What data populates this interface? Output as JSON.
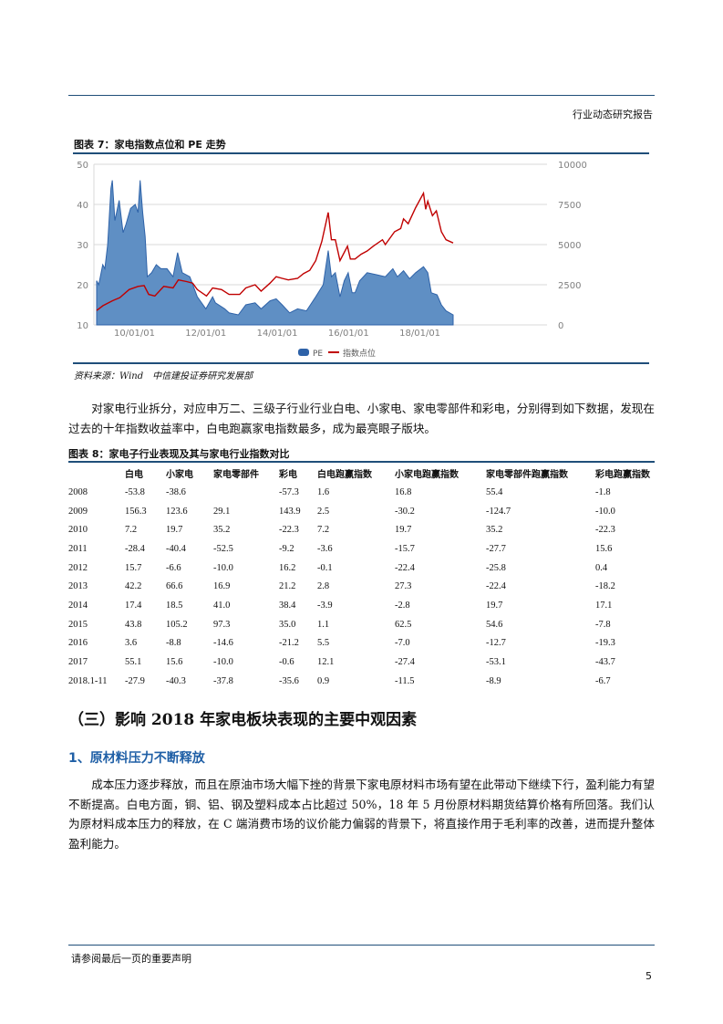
{
  "header": {
    "report_type": "行业动态研究报告"
  },
  "figure7": {
    "title": "图表 7：家电指数点位和 PE 走势",
    "source": "资料来源：Wind　中信建投证券研究发展部"
  },
  "chart_data": {
    "type": "area+line",
    "title": "家电指数点位和 PE 走势",
    "x_ticks": [
      {
        "label": "10/01/01",
        "year": 2010
      },
      {
        "label": "12/01/01",
        "year": 2012
      },
      {
        "label": "14/01/01",
        "year": 2014
      },
      {
        "label": "16/01/01",
        "year": 2016
      },
      {
        "label": "18/01/01",
        "year": 2018
      }
    ],
    "xlim": [
      2008.94,
      2018.93
    ],
    "y_left": {
      "ticks": [
        10,
        20,
        30,
        40,
        50
      ],
      "ylim": [
        10,
        50
      ]
    },
    "y_right": {
      "ticks": [
        0,
        2500,
        5000,
        7500,
        10000
      ],
      "ylim": [
        0,
        10000
      ]
    },
    "grid": true,
    "legend_position": "bottom",
    "series": [
      {
        "name": "PE",
        "type": "area",
        "axis": "left",
        "color": "#4472c4",
        "points": [
          [
            2008.94,
            21
          ],
          [
            2009.0,
            20
          ],
          [
            2009.11,
            25
          ],
          [
            2009.17,
            24
          ],
          [
            2009.25,
            30
          ],
          [
            2009.34,
            44
          ],
          [
            2009.38,
            46
          ],
          [
            2009.45,
            36
          ],
          [
            2009.57,
            41
          ],
          [
            2009.68,
            33
          ],
          [
            2009.76,
            35
          ],
          [
            2009.89,
            39
          ],
          [
            2010.02,
            40
          ],
          [
            2010.1,
            38
          ],
          [
            2010.16,
            46
          ],
          [
            2010.23,
            38
          ],
          [
            2010.3,
            32
          ],
          [
            2010.36,
            22
          ],
          [
            2010.48,
            23
          ],
          [
            2010.61,
            25
          ],
          [
            2010.74,
            24
          ],
          [
            2010.91,
            24
          ],
          [
            2011.08,
            22
          ],
          [
            2011.21,
            28
          ],
          [
            2011.34,
            23
          ],
          [
            2011.55,
            22
          ],
          [
            2011.76,
            17
          ],
          [
            2012.0,
            14
          ],
          [
            2012.19,
            17
          ],
          [
            2012.27,
            15.5
          ],
          [
            2012.53,
            14
          ],
          [
            2012.65,
            13
          ],
          [
            2012.91,
            12.5
          ],
          [
            2013.12,
            15
          ],
          [
            2013.38,
            15.5
          ],
          [
            2013.55,
            14
          ],
          [
            2013.8,
            16
          ],
          [
            2013.97,
            16.5
          ],
          [
            2014.14,
            15
          ],
          [
            2014.35,
            13
          ],
          [
            2014.57,
            14
          ],
          [
            2014.82,
            13.5
          ],
          [
            2015.08,
            17
          ],
          [
            2015.29,
            20
          ],
          [
            2015.43,
            28.5
          ],
          [
            2015.52,
            22
          ],
          [
            2015.63,
            23
          ],
          [
            2015.76,
            17
          ],
          [
            2015.88,
            21
          ],
          [
            2015.99,
            23
          ],
          [
            2016.1,
            18
          ],
          [
            2016.18,
            18
          ],
          [
            2016.31,
            21
          ],
          [
            2016.52,
            23
          ],
          [
            2016.78,
            22.5
          ],
          [
            2017.03,
            22
          ],
          [
            2017.24,
            24
          ],
          [
            2017.37,
            22
          ],
          [
            2017.54,
            23.5
          ],
          [
            2017.71,
            21.5
          ],
          [
            2017.88,
            23
          ],
          [
            2018.1,
            24.5
          ],
          [
            2018.22,
            23
          ],
          [
            2018.32,
            18
          ],
          [
            2018.48,
            17.5
          ],
          [
            2018.6,
            15
          ],
          [
            2018.73,
            13.5
          ],
          [
            2018.93,
            12.5
          ]
        ]
      },
      {
        "name": "指数点位",
        "type": "line",
        "axis": "right",
        "color": "#c00000",
        "points": [
          [
            2008.94,
            900
          ],
          [
            2009.12,
            1200
          ],
          [
            2009.38,
            1500
          ],
          [
            2009.59,
            1700
          ],
          [
            2009.85,
            2200
          ],
          [
            2010.1,
            2400
          ],
          [
            2010.27,
            2450
          ],
          [
            2010.4,
            1900
          ],
          [
            2010.57,
            1800
          ],
          [
            2010.82,
            2400
          ],
          [
            2011.08,
            2300
          ],
          [
            2011.23,
            2800
          ],
          [
            2011.46,
            2700
          ],
          [
            2011.63,
            2600
          ],
          [
            2011.76,
            2200
          ],
          [
            2012.02,
            1800
          ],
          [
            2012.19,
            2300
          ],
          [
            2012.44,
            2200
          ],
          [
            2012.65,
            1900
          ],
          [
            2012.95,
            1900
          ],
          [
            2013.12,
            2300
          ],
          [
            2013.38,
            2500
          ],
          [
            2013.55,
            2100
          ],
          [
            2013.8,
            2600
          ],
          [
            2013.97,
            3000
          ],
          [
            2014.14,
            2900
          ],
          [
            2014.31,
            2800
          ],
          [
            2014.57,
            2900
          ],
          [
            2014.74,
            3200
          ],
          [
            2014.91,
            3400
          ],
          [
            2015.08,
            4000
          ],
          [
            2015.25,
            5200
          ],
          [
            2015.43,
            7000
          ],
          [
            2015.52,
            5300
          ],
          [
            2015.63,
            5300
          ],
          [
            2015.76,
            4000
          ],
          [
            2015.97,
            4900
          ],
          [
            2016.05,
            4100
          ],
          [
            2016.18,
            4100
          ],
          [
            2016.35,
            4400
          ],
          [
            2016.52,
            4600
          ],
          [
            2016.69,
            4900
          ],
          [
            2016.95,
            5300
          ],
          [
            2017.03,
            5000
          ],
          [
            2017.29,
            5800
          ],
          [
            2017.46,
            6000
          ],
          [
            2017.54,
            6600
          ],
          [
            2017.67,
            6300
          ],
          [
            2017.88,
            7300
          ],
          [
            2018.1,
            8200
          ],
          [
            2018.16,
            7200
          ],
          [
            2018.22,
            7700
          ],
          [
            2018.35,
            6800
          ],
          [
            2018.46,
            7100
          ],
          [
            2018.6,
            5800
          ],
          [
            2018.73,
            5300
          ],
          [
            2018.93,
            5100
          ]
        ]
      }
    ]
  },
  "body": {
    "para1": "对家电行业拆分，对应申万二、三级子行业行业白电、小家电、家电零部件和彩电，分别得到如下数据，发现在过去的十年指数收益率中，白电跑赢家电指数最多，成为最亮眼子版块。",
    "section_title": "（三）影响 2018 年家电板块表现的主要中观因素",
    "subsection_title": "1、原材料压力不断释放",
    "para2": "成本压力逐步释放，而且在原油市场大幅下挫的背景下家电原材料市场有望在此带动下继续下行，盈利能力有望不断提高。白电方面，铜、铝、钢及塑料成本占比超过 50%，18 年 5 月份原材料期货结算价格有所回落。我们认为原材料成本压力的释放，在 C 端消费市场的议价能力偏弱的背景下，将直接作用于毛利率的改善，进而提升整体盈利能力。"
  },
  "figure8": {
    "title": "图表 8：家电子行业表现及其与家电行业指数对比",
    "columns": [
      "",
      "白电",
      "小家电",
      "家电零部件",
      "彩电",
      "白电跑赢指数",
      "小家电跑赢指数",
      "家电零部件跑赢指数",
      "彩电跑赢指数"
    ],
    "rows": [
      [
        "2008",
        "-53.8",
        "-38.6",
        "",
        "-57.3",
        "1.6",
        "16.8",
        "55.4",
        "-1.8"
      ],
      [
        "2009",
        "156.3",
        "123.6",
        "29.1",
        "143.9",
        "2.5",
        "-30.2",
        "-124.7",
        "-10.0"
      ],
      [
        "2010",
        "7.2",
        "19.7",
        "35.2",
        "-22.3",
        "7.2",
        "19.7",
        "35.2",
        "-22.3"
      ],
      [
        "2011",
        "-28.4",
        "-40.4",
        "-52.5",
        "-9.2",
        "-3.6",
        "-15.7",
        "-27.7",
        "15.6"
      ],
      [
        "2012",
        "15.7",
        "-6.6",
        "-10.0",
        "16.2",
        "-0.1",
        "-22.4",
        "-25.8",
        "0.4"
      ],
      [
        "2013",
        "42.2",
        "66.6",
        "16.9",
        "21.2",
        "2.8",
        "27.3",
        "-22.4",
        "-18.2"
      ],
      [
        "2014",
        "17.4",
        "18.5",
        "41.0",
        "38.4",
        "-3.9",
        "-2.8",
        "19.7",
        "17.1"
      ],
      [
        "2015",
        "43.8",
        "105.2",
        "97.3",
        "35.0",
        "1.1",
        "62.5",
        "54.6",
        "-7.8"
      ],
      [
        "2016",
        "3.6",
        "-8.8",
        "-14.6",
        "-21.2",
        "5.5",
        "-7.0",
        "-12.7",
        "-19.3"
      ],
      [
        "2017",
        "55.1",
        "15.6",
        "-10.0",
        "-0.6",
        "12.1",
        "-27.4",
        "-53.1",
        "-43.7"
      ],
      [
        "2018.1-11",
        "-27.9",
        "-40.3",
        "-37.8",
        "-35.6",
        "0.9",
        "-11.5",
        "-8.9",
        "-6.7"
      ]
    ]
  },
  "footer": {
    "disclaimer": "请参阅最后一页的重要声明",
    "page_number": "5"
  }
}
